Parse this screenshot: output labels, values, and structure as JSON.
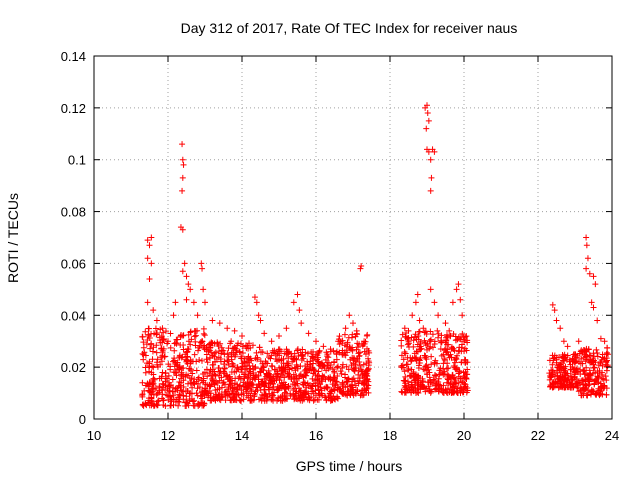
{
  "chart_data": {
    "type": "scatter",
    "title": "Day 312 of 2017, Rate Of TEC Index for receiver naus",
    "xlabel": "GPS time / hours",
    "ylabel": "ROTI / TECUs",
    "xlim": [
      10,
      24
    ],
    "ylim": [
      0,
      0.14
    ],
    "xticks": [
      "10",
      "12",
      "14",
      "16",
      "18",
      "20",
      "22",
      "24"
    ],
    "yticks": [
      "0",
      "0.02",
      "0.04",
      "0.06",
      "0.08",
      "0.1",
      "0.12",
      "0.14"
    ],
    "xtick_values": [
      10,
      12,
      14,
      16,
      18,
      20,
      22,
      24
    ],
    "ytick_values": [
      0,
      0.02,
      0.04,
      0.06,
      0.08,
      0.1,
      0.12,
      0.14
    ],
    "grid": true,
    "marker": "+",
    "color": "#ff0000",
    "series": [
      {
        "name": "ROTI",
        "points": [
          [
            11.45,
            0.069
          ],
          [
            11.5,
            0.067
          ],
          [
            11.55,
            0.07
          ],
          [
            11.45,
            0.062
          ],
          [
            11.55,
            0.06
          ],
          [
            11.5,
            0.054
          ],
          [
            11.45,
            0.045
          ],
          [
            11.6,
            0.042
          ],
          [
            11.7,
            0.038
          ],
          [
            11.85,
            0.035
          ],
          [
            12.0,
            0.03
          ],
          [
            12.15,
            0.04
          ],
          [
            12.2,
            0.045
          ],
          [
            12.38,
            0.106
          ],
          [
            12.4,
            0.1
          ],
          [
            12.42,
            0.098
          ],
          [
            12.4,
            0.093
          ],
          [
            12.38,
            0.088
          ],
          [
            12.35,
            0.074
          ],
          [
            12.4,
            0.073
          ],
          [
            12.45,
            0.06
          ],
          [
            12.4,
            0.057
          ],
          [
            12.5,
            0.055
          ],
          [
            12.55,
            0.052
          ],
          [
            12.6,
            0.05
          ],
          [
            12.5,
            0.046
          ],
          [
            12.7,
            0.045
          ],
          [
            12.8,
            0.04
          ],
          [
            12.9,
            0.06
          ],
          [
            12.92,
            0.058
          ],
          [
            12.95,
            0.05
          ],
          [
            13.0,
            0.045
          ],
          [
            13.2,
            0.038
          ],
          [
            13.4,
            0.037
          ],
          [
            13.6,
            0.035
          ],
          [
            13.8,
            0.034
          ],
          [
            14.0,
            0.032
          ],
          [
            14.35,
            0.047
          ],
          [
            14.4,
            0.045
          ],
          [
            14.45,
            0.04
          ],
          [
            14.5,
            0.038
          ],
          [
            14.6,
            0.033
          ],
          [
            14.8,
            0.03
          ],
          [
            15.0,
            0.032
          ],
          [
            15.2,
            0.035
          ],
          [
            15.4,
            0.045
          ],
          [
            15.5,
            0.048
          ],
          [
            15.55,
            0.042
          ],
          [
            15.6,
            0.037
          ],
          [
            15.8,
            0.033
          ],
          [
            16.0,
            0.03
          ],
          [
            16.2,
            0.028
          ],
          [
            16.4,
            0.026
          ],
          [
            16.6,
            0.03
          ],
          [
            16.8,
            0.035
          ],
          [
            16.9,
            0.04
          ],
          [
            17.0,
            0.037
          ],
          [
            17.1,
            0.034
          ],
          [
            17.2,
            0.058
          ],
          [
            17.22,
            0.059
          ],
          [
            17.3,
            0.03
          ],
          [
            17.35,
            0.025
          ],
          [
            18.4,
            0.035
          ],
          [
            18.5,
            0.034
          ],
          [
            18.6,
            0.04
          ],
          [
            18.7,
            0.045
          ],
          [
            18.75,
            0.048
          ],
          [
            18.8,
            0.038
          ],
          [
            18.9,
            0.035
          ],
          [
            18.95,
            0.12
          ],
          [
            19.0,
            0.121
          ],
          [
            19.02,
            0.118
          ],
          [
            19.05,
            0.115
          ],
          [
            18.98,
            0.112
          ],
          [
            19.0,
            0.104
          ],
          [
            19.05,
            0.103
          ],
          [
            19.1,
            0.1
          ],
          [
            19.15,
            0.104
          ],
          [
            19.2,
            0.103
          ],
          [
            19.12,
            0.093
          ],
          [
            19.1,
            0.088
          ],
          [
            19.1,
            0.05
          ],
          [
            19.2,
            0.045
          ],
          [
            19.3,
            0.04
          ],
          [
            19.5,
            0.037
          ],
          [
            19.7,
            0.045
          ],
          [
            19.8,
            0.05
          ],
          [
            19.85,
            0.052
          ],
          [
            19.9,
            0.046
          ],
          [
            19.95,
            0.04
          ],
          [
            20.0,
            0.03
          ],
          [
            20.05,
            0.022
          ],
          [
            20.1,
            0.011
          ],
          [
            22.4,
            0.044
          ],
          [
            22.45,
            0.042
          ],
          [
            22.5,
            0.038
          ],
          [
            22.6,
            0.035
          ],
          [
            22.7,
            0.03
          ],
          [
            22.8,
            0.028
          ],
          [
            23.0,
            0.025
          ],
          [
            23.1,
            0.03
          ],
          [
            23.3,
            0.07
          ],
          [
            23.32,
            0.067
          ],
          [
            23.35,
            0.062
          ],
          [
            23.3,
            0.058
          ],
          [
            23.4,
            0.056
          ],
          [
            23.5,
            0.055
          ],
          [
            23.55,
            0.052
          ],
          [
            23.45,
            0.045
          ],
          [
            23.5,
            0.043
          ],
          [
            23.6,
            0.038
          ],
          [
            23.7,
            0.031
          ],
          [
            23.8,
            0.03
          ],
          [
            23.85,
            0.025
          ]
        ],
        "bands": [
          {
            "x": [
              11.3,
              13.0
            ],
            "y": [
              0.005,
              0.035
            ]
          },
          {
            "x": [
              13.0,
              14.5
            ],
            "y": [
              0.007,
              0.03
            ]
          },
          {
            "x": [
              14.5,
              16.6
            ],
            "y": [
              0.007,
              0.027
            ]
          },
          {
            "x": [
              16.6,
              17.45
            ],
            "y": [
              0.009,
              0.033
            ]
          },
          {
            "x": [
              18.3,
              20.1
            ],
            "y": [
              0.01,
              0.034
            ]
          },
          {
            "x": [
              22.3,
              23.1
            ],
            "y": [
              0.012,
              0.025
            ]
          },
          {
            "x": [
              23.1,
              23.9
            ],
            "y": [
              0.009,
              0.028
            ]
          }
        ],
        "band_count_per_hour": 220
      }
    ]
  }
}
